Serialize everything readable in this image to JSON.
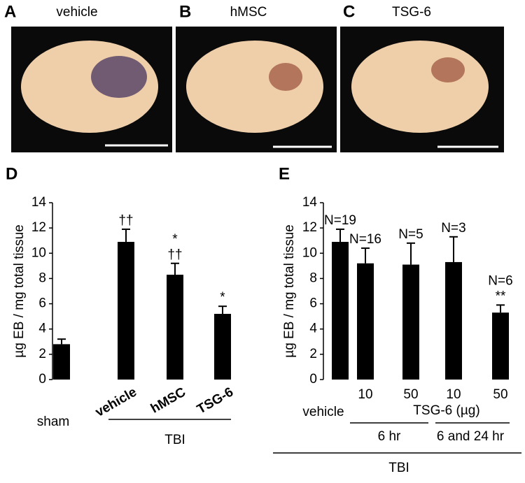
{
  "panels": [
    {
      "letter": "A",
      "title": "vehicle"
    },
    {
      "letter": "B",
      "title": "hMSC"
    },
    {
      "letter": "C",
      "title": "TSG-6"
    }
  ],
  "chart_data": [
    {
      "type": "bar",
      "letter": "D",
      "ylabel": "µg EB / mg total tissue",
      "categories": [
        "sham",
        "vehicle",
        "hMSC",
        "TSG-6"
      ],
      "values": [
        2.8,
        10.9,
        8.3,
        5.2
      ],
      "errors": [
        0.4,
        1.0,
        0.9,
        0.6
      ],
      "markers": [
        null,
        [
          "††"
        ],
        [
          "*",
          "††"
        ],
        [
          "*"
        ]
      ],
      "group_labels": [
        "TBI"
      ],
      "color": "#000000",
      "ylim": [
        0,
        14
      ],
      "yticks": [
        0,
        2,
        4,
        6,
        8,
        10,
        12,
        14
      ]
    },
    {
      "type": "bar",
      "letter": "E",
      "ylabel": "µg EB / mg total tissue",
      "categories": [
        "vehicle",
        "10",
        "50",
        "10",
        "50"
      ],
      "values": [
        10.9,
        9.2,
        9.1,
        9.3,
        5.3
      ],
      "errors": [
        1.0,
        1.2,
        1.7,
        2.0,
        0.6
      ],
      "bar_labels": [
        "N=19",
        "N=16",
        "N=5",
        "N=3",
        "N=6"
      ],
      "markers": [
        null,
        null,
        null,
        null,
        [
          "**"
        ]
      ],
      "group_labels": [
        "TSG-6 (µg)",
        "6 hr",
        "6 and 24 hr",
        "TBI"
      ],
      "color": "#000000",
      "ylim": [
        0,
        14
      ],
      "yticks": [
        0,
        2,
        4,
        6,
        8,
        10,
        12,
        14
      ]
    }
  ]
}
